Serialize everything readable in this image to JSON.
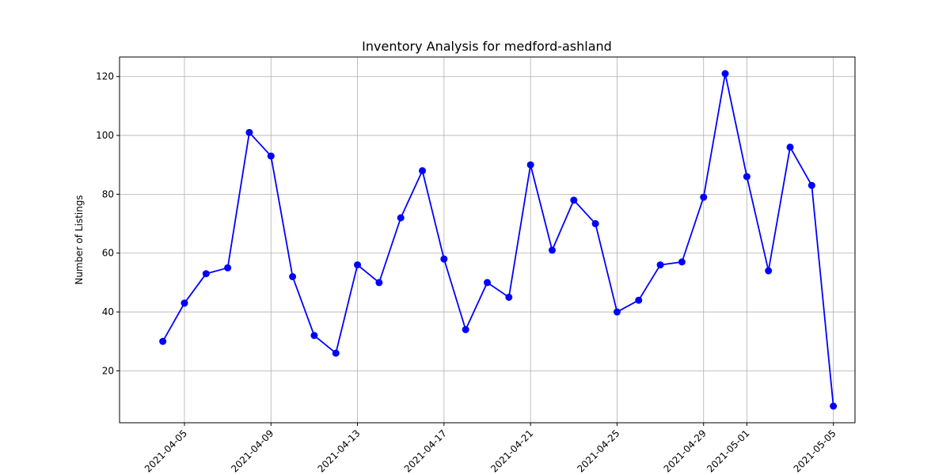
{
  "chart_data": {
    "type": "line",
    "title": "Inventory Analysis for medford-ashland",
    "xlabel": "",
    "ylabel": "Number of Listings",
    "grid": true,
    "x": [
      "2021-04-04",
      "2021-04-05",
      "2021-04-06",
      "2021-04-07",
      "2021-04-08",
      "2021-04-09",
      "2021-04-10",
      "2021-04-11",
      "2021-04-12",
      "2021-04-13",
      "2021-04-14",
      "2021-04-15",
      "2021-04-16",
      "2021-04-17",
      "2021-04-18",
      "2021-04-19",
      "2021-04-20",
      "2021-04-21",
      "2021-04-22",
      "2021-04-23",
      "2021-04-24",
      "2021-04-25",
      "2021-04-26",
      "2021-04-27",
      "2021-04-28",
      "2021-04-29",
      "2021-04-30",
      "2021-05-01",
      "2021-05-02",
      "2021-05-03",
      "2021-05-04",
      "2021-05-05"
    ],
    "series": [
      {
        "color": "#0000ff",
        "marker": "circle",
        "values": [
          30,
          43,
          53,
          55,
          101,
          93,
          52,
          32,
          26,
          56,
          50,
          72,
          88,
          58,
          34,
          50,
          45,
          90,
          61,
          78,
          70,
          40,
          44,
          56,
          57,
          79,
          121,
          86,
          54,
          96,
          83,
          8
        ]
      }
    ],
    "xlim": [
      "2021-04-02",
      "2021-05-06"
    ],
    "ylim": [
      2.35,
      126.65
    ],
    "xticks": [
      "2021-04-05",
      "2021-04-09",
      "2021-04-13",
      "2021-04-17",
      "2021-04-21",
      "2021-04-25",
      "2021-04-29",
      "2021-05-01",
      "2021-05-05"
    ],
    "yticks": [
      20,
      40,
      60,
      80,
      100,
      120
    ]
  }
}
